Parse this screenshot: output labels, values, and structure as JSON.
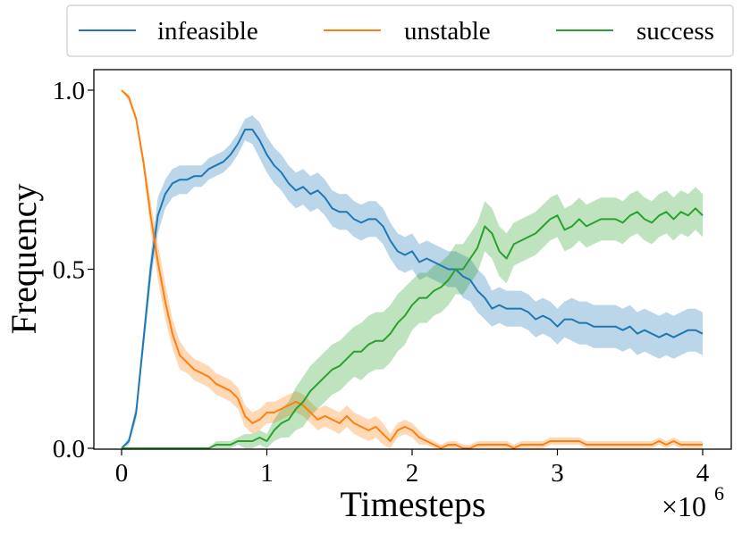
{
  "chart_data": {
    "type": "line",
    "xlabel": "Timesteps",
    "ylabel": "Frequency",
    "x_multiplier_label": "×10",
    "x_multiplier_exp": "6",
    "xlim": [
      -0.2,
      4.2
    ],
    "ylim": [
      0.0,
      1.0
    ],
    "xticks": [
      0,
      1,
      2,
      3,
      4
    ],
    "xtick_labels": [
      "0",
      "1",
      "2",
      "3",
      "4"
    ],
    "yticks": [
      0.0,
      0.5,
      1.0
    ],
    "ytick_labels": [
      "0.0",
      "0.5",
      "1.0"
    ],
    "legend_placement": "top (above plot)",
    "grid": false,
    "series": [
      {
        "name": "infeasible",
        "color": "#1f77b4",
        "x": [
          0.0,
          0.05,
          0.1,
          0.15,
          0.2,
          0.25,
          0.3,
          0.35,
          0.4,
          0.45,
          0.5,
          0.55,
          0.6,
          0.65,
          0.7,
          0.75,
          0.8,
          0.85,
          0.9,
          0.95,
          1.0,
          1.05,
          1.1,
          1.15,
          1.2,
          1.25,
          1.3,
          1.35,
          1.4,
          1.45,
          1.5,
          1.55,
          1.6,
          1.65,
          1.7,
          1.75,
          1.8,
          1.85,
          1.9,
          1.95,
          2.0,
          2.05,
          2.1,
          2.15,
          2.2,
          2.25,
          2.3,
          2.35,
          2.4,
          2.45,
          2.5,
          2.55,
          2.6,
          2.65,
          2.7,
          2.75,
          2.8,
          2.85,
          2.9,
          2.95,
          3.0,
          3.05,
          3.1,
          3.15,
          3.2,
          3.25,
          3.3,
          3.35,
          3.4,
          3.45,
          3.5,
          3.55,
          3.6,
          3.65,
          3.7,
          3.75,
          3.8,
          3.85,
          3.9,
          3.95,
          4.0
        ],
        "y": [
          0.0,
          0.02,
          0.1,
          0.3,
          0.5,
          0.65,
          0.71,
          0.74,
          0.75,
          0.75,
          0.76,
          0.76,
          0.78,
          0.79,
          0.8,
          0.82,
          0.85,
          0.89,
          0.89,
          0.86,
          0.82,
          0.79,
          0.77,
          0.74,
          0.72,
          0.73,
          0.71,
          0.72,
          0.7,
          0.67,
          0.66,
          0.66,
          0.64,
          0.63,
          0.64,
          0.64,
          0.62,
          0.58,
          0.55,
          0.54,
          0.55,
          0.52,
          0.53,
          0.52,
          0.51,
          0.5,
          0.5,
          0.48,
          0.47,
          0.44,
          0.42,
          0.39,
          0.4,
          0.39,
          0.39,
          0.39,
          0.38,
          0.36,
          0.37,
          0.36,
          0.34,
          0.36,
          0.36,
          0.35,
          0.35,
          0.34,
          0.34,
          0.34,
          0.34,
          0.33,
          0.34,
          0.32,
          0.33,
          0.32,
          0.31,
          0.32,
          0.31,
          0.32,
          0.33,
          0.33,
          0.32
        ],
        "spread": [
          0.0,
          0.01,
          0.02,
          0.03,
          0.04,
          0.05,
          0.04,
          0.04,
          0.04,
          0.04,
          0.03,
          0.03,
          0.03,
          0.03,
          0.03,
          0.03,
          0.03,
          0.03,
          0.04,
          0.05,
          0.05,
          0.05,
          0.05,
          0.05,
          0.05,
          0.05,
          0.05,
          0.05,
          0.05,
          0.05,
          0.05,
          0.05,
          0.05,
          0.05,
          0.05,
          0.05,
          0.05,
          0.05,
          0.05,
          0.05,
          0.05,
          0.05,
          0.05,
          0.05,
          0.05,
          0.05,
          0.05,
          0.06,
          0.06,
          0.06,
          0.06,
          0.05,
          0.05,
          0.05,
          0.05,
          0.05,
          0.05,
          0.05,
          0.05,
          0.05,
          0.05,
          0.05,
          0.06,
          0.06,
          0.06,
          0.06,
          0.06,
          0.06,
          0.06,
          0.06,
          0.06,
          0.06,
          0.06,
          0.06,
          0.06,
          0.06,
          0.06,
          0.06,
          0.06,
          0.06,
          0.06
        ]
      },
      {
        "name": "unstable",
        "color": "#ff7f0e",
        "x": [
          0.0,
          0.05,
          0.1,
          0.15,
          0.2,
          0.25,
          0.3,
          0.35,
          0.4,
          0.45,
          0.5,
          0.55,
          0.6,
          0.65,
          0.7,
          0.75,
          0.8,
          0.85,
          0.9,
          0.95,
          1.0,
          1.05,
          1.1,
          1.15,
          1.2,
          1.25,
          1.3,
          1.35,
          1.4,
          1.45,
          1.5,
          1.55,
          1.6,
          1.65,
          1.7,
          1.75,
          1.8,
          1.85,
          1.9,
          1.95,
          2.0,
          2.05,
          2.1,
          2.15,
          2.2,
          2.25,
          2.3,
          2.35,
          2.4,
          2.45,
          2.5,
          2.55,
          2.6,
          2.65,
          2.7,
          2.75,
          2.8,
          2.85,
          2.9,
          2.95,
          3.0,
          3.05,
          3.1,
          3.15,
          3.2,
          3.25,
          3.3,
          3.35,
          3.4,
          3.45,
          3.5,
          3.55,
          3.6,
          3.65,
          3.7,
          3.75,
          3.8,
          3.85,
          3.9,
          3.95,
          4.0
        ],
        "y": [
          1.0,
          0.98,
          0.92,
          0.8,
          0.65,
          0.52,
          0.41,
          0.32,
          0.26,
          0.24,
          0.22,
          0.21,
          0.2,
          0.18,
          0.17,
          0.16,
          0.14,
          0.09,
          0.07,
          0.08,
          0.1,
          0.1,
          0.11,
          0.12,
          0.13,
          0.12,
          0.1,
          0.08,
          0.09,
          0.08,
          0.07,
          0.09,
          0.07,
          0.06,
          0.05,
          0.06,
          0.04,
          0.02,
          0.05,
          0.06,
          0.05,
          0.03,
          0.02,
          0.01,
          0.0,
          0.01,
          0.01,
          0.0,
          0.0,
          0.01,
          0.01,
          0.01,
          0.01,
          0.01,
          0.0,
          0.01,
          0.01,
          0.01,
          0.01,
          0.02,
          0.02,
          0.02,
          0.02,
          0.02,
          0.01,
          0.01,
          0.01,
          0.01,
          0.01,
          0.01,
          0.01,
          0.01,
          0.01,
          0.01,
          0.02,
          0.01,
          0.02,
          0.01,
          0.01,
          0.01,
          0.01
        ],
        "spread": [
          0.0,
          0.01,
          0.01,
          0.02,
          0.04,
          0.05,
          0.05,
          0.04,
          0.04,
          0.03,
          0.03,
          0.03,
          0.03,
          0.03,
          0.03,
          0.03,
          0.03,
          0.03,
          0.03,
          0.03,
          0.03,
          0.03,
          0.03,
          0.03,
          0.03,
          0.03,
          0.03,
          0.03,
          0.03,
          0.03,
          0.03,
          0.03,
          0.03,
          0.03,
          0.03,
          0.03,
          0.03,
          0.02,
          0.02,
          0.02,
          0.02,
          0.02,
          0.01,
          0.01,
          0.01,
          0.01,
          0.01,
          0.01,
          0.01,
          0.01,
          0.01,
          0.01,
          0.01,
          0.01,
          0.01,
          0.01,
          0.01,
          0.01,
          0.01,
          0.01,
          0.01,
          0.01,
          0.01,
          0.01,
          0.01,
          0.01,
          0.01,
          0.01,
          0.01,
          0.01,
          0.01,
          0.01,
          0.01,
          0.01,
          0.01,
          0.01,
          0.01,
          0.01,
          0.01,
          0.01,
          0.01
        ]
      },
      {
        "name": "success",
        "color": "#2ca02c",
        "x": [
          0.0,
          0.05,
          0.1,
          0.15,
          0.2,
          0.25,
          0.3,
          0.35,
          0.4,
          0.45,
          0.5,
          0.55,
          0.6,
          0.65,
          0.7,
          0.75,
          0.8,
          0.85,
          0.9,
          0.95,
          1.0,
          1.05,
          1.1,
          1.15,
          1.2,
          1.25,
          1.3,
          1.35,
          1.4,
          1.45,
          1.5,
          1.55,
          1.6,
          1.65,
          1.7,
          1.75,
          1.8,
          1.85,
          1.9,
          1.95,
          2.0,
          2.05,
          2.1,
          2.15,
          2.2,
          2.25,
          2.3,
          2.35,
          2.4,
          2.45,
          2.5,
          2.55,
          2.6,
          2.65,
          2.7,
          2.75,
          2.8,
          2.85,
          2.9,
          2.95,
          3.0,
          3.05,
          3.1,
          3.15,
          3.2,
          3.25,
          3.3,
          3.35,
          3.4,
          3.45,
          3.5,
          3.55,
          3.6,
          3.65,
          3.7,
          3.75,
          3.8,
          3.85,
          3.9,
          3.95,
          4.0
        ],
        "y": [
          0.0,
          0.0,
          0.0,
          0.0,
          0.0,
          0.0,
          0.0,
          0.0,
          0.0,
          0.0,
          0.0,
          0.0,
          0.0,
          0.01,
          0.01,
          0.01,
          0.02,
          0.02,
          0.02,
          0.03,
          0.02,
          0.05,
          0.07,
          0.08,
          0.11,
          0.13,
          0.16,
          0.18,
          0.2,
          0.22,
          0.23,
          0.25,
          0.27,
          0.27,
          0.29,
          0.3,
          0.3,
          0.32,
          0.35,
          0.37,
          0.4,
          0.42,
          0.42,
          0.44,
          0.45,
          0.47,
          0.5,
          0.5,
          0.53,
          0.56,
          0.62,
          0.6,
          0.55,
          0.53,
          0.57,
          0.58,
          0.59,
          0.6,
          0.62,
          0.64,
          0.65,
          0.61,
          0.62,
          0.64,
          0.62,
          0.63,
          0.64,
          0.64,
          0.64,
          0.63,
          0.65,
          0.66,
          0.64,
          0.63,
          0.65,
          0.66,
          0.64,
          0.66,
          0.65,
          0.67,
          0.65
        ],
        "spread": [
          0.0,
          0.0,
          0.0,
          0.0,
          0.0,
          0.0,
          0.0,
          0.0,
          0.0,
          0.0,
          0.0,
          0.0,
          0.0,
          0.01,
          0.01,
          0.01,
          0.01,
          0.02,
          0.02,
          0.02,
          0.02,
          0.03,
          0.04,
          0.05,
          0.06,
          0.07,
          0.07,
          0.07,
          0.07,
          0.07,
          0.07,
          0.07,
          0.07,
          0.08,
          0.08,
          0.08,
          0.08,
          0.08,
          0.08,
          0.08,
          0.07,
          0.07,
          0.07,
          0.07,
          0.07,
          0.07,
          0.07,
          0.07,
          0.07,
          0.07,
          0.07,
          0.07,
          0.07,
          0.07,
          0.06,
          0.06,
          0.06,
          0.06,
          0.06,
          0.06,
          0.06,
          0.06,
          0.06,
          0.06,
          0.06,
          0.06,
          0.06,
          0.06,
          0.06,
          0.06,
          0.06,
          0.06,
          0.06,
          0.06,
          0.06,
          0.06,
          0.06,
          0.06,
          0.06,
          0.06,
          0.06
        ]
      }
    ]
  }
}
